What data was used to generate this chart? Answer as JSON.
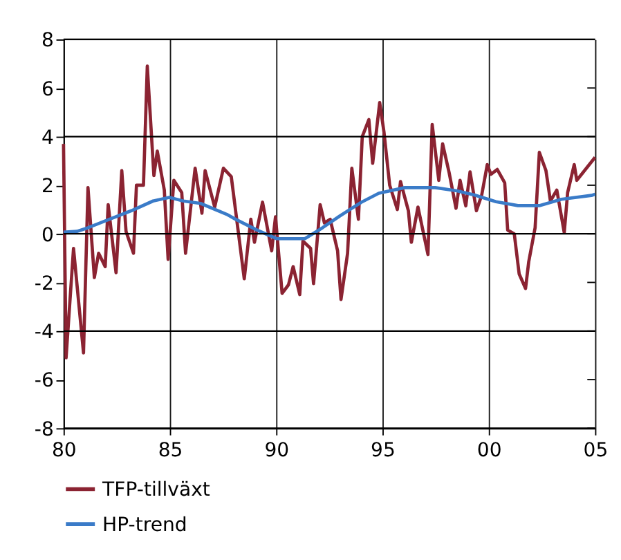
{
  "chart_data": {
    "type": "line",
    "xlim": [
      1980,
      2005
    ],
    "ylim": [
      -8,
      8
    ],
    "xticks": [
      {
        "value": 1980,
        "label": "80"
      },
      {
        "value": 1985,
        "label": "85"
      },
      {
        "value": 1990,
        "label": "90"
      },
      {
        "value": 1995,
        "label": "95"
      },
      {
        "value": 2000,
        "label": "00"
      },
      {
        "value": 2005,
        "label": "05"
      }
    ],
    "yticks": [
      -8,
      -6,
      -4,
      -2,
      0,
      2,
      4,
      6,
      8
    ],
    "grid": true,
    "legend": "bottom left",
    "line_style": "solid",
    "marker": "none",
    "series": [
      {
        "name": "TFP-tillväxt",
        "color": "#8b2332",
        "x": [
          1980.0,
          1980.12,
          1980.47,
          1980.94,
          1981.15,
          1981.45,
          1981.65,
          1981.96,
          1982.1,
          1982.47,
          1982.74,
          1982.94,
          1983.29,
          1983.43,
          1983.76,
          1983.94,
          1984.25,
          1984.41,
          1984.74,
          1984.92,
          1985.19,
          1985.56,
          1985.74,
          1986.19,
          1986.51,
          1986.66,
          1987.11,
          1987.52,
          1987.89,
          1988.5,
          1988.81,
          1988.98,
          1989.36,
          1989.79,
          1989.97,
          1990.28,
          1990.58,
          1990.8,
          1991.11,
          1991.26,
          1991.62,
          1991.76,
          1992.07,
          1992.27,
          1992.54,
          1992.89,
          1993.05,
          1993.36,
          1993.56,
          1993.87,
          1994.05,
          1994.36,
          1994.54,
          1994.87,
          1995.07,
          1995.34,
          1995.7,
          1995.85,
          1996.22,
          1996.36,
          1996.67,
          1997.14,
          1997.34,
          1997.65,
          1997.83,
          1998.14,
          1998.46,
          1998.65,
          1998.92,
          1999.12,
          1999.42,
          1999.67,
          1999.93,
          2000.1,
          2000.4,
          2000.75,
          2000.89,
          2001.2,
          2001.43,
          2001.73,
          2001.88,
          2002.18,
          2002.38,
          2002.69,
          2002.9,
          2003.2,
          2003.55,
          2003.71,
          2004.02,
          2004.14,
          2005.0
        ],
        "values": [
          3.7,
          -5.1,
          -0.6,
          -4.9,
          1.9,
          -1.8,
          -0.8,
          -1.35,
          1.2,
          -1.6,
          2.6,
          0.1,
          -0.8,
          2.0,
          2.0,
          6.9,
          2.4,
          3.4,
          1.8,
          -1.05,
          2.2,
          1.7,
          -0.8,
          2.7,
          0.85,
          2.6,
          1.1,
          2.7,
          2.35,
          -1.85,
          0.6,
          -0.35,
          1.3,
          -0.7,
          0.7,
          -2.45,
          -2.1,
          -1.35,
          -2.5,
          -0.3,
          -0.6,
          -2.05,
          1.2,
          0.45,
          0.6,
          -0.7,
          -2.7,
          -0.8,
          2.7,
          0.6,
          4.0,
          4.7,
          2.9,
          5.4,
          4.2,
          2.0,
          1.0,
          2.15,
          0.95,
          -0.35,
          1.1,
          -0.85,
          4.5,
          2.2,
          3.7,
          2.5,
          1.05,
          2.2,
          1.15,
          2.55,
          0.95,
          1.6,
          2.85,
          2.45,
          2.65,
          2.1,
          0.15,
          0.0,
          -1.65,
          -2.25,
          -1.15,
          0.25,
          3.35,
          2.6,
          1.35,
          1.8,
          0.05,
          1.7,
          2.85,
          2.2,
          3.15
        ]
      },
      {
        "name": "HP-trend",
        "color": "#3a7bc8",
        "x": [
          1980.0,
          1980.63,
          1981.15,
          1982.16,
          1983.19,
          1984.21,
          1984.98,
          1985.64,
          1986.45,
          1987.68,
          1988.09,
          1989.11,
          1990.03,
          1991.35,
          1992.18,
          1992.99,
          1994.01,
          1994.83,
          1996.05,
          1997.48,
          1998.5,
          1999.32,
          2000.34,
          2001.37,
          2002.38,
          2003.41,
          2004.83,
          2005.0
        ],
        "values": [
          0.07,
          0.1,
          0.25,
          0.6,
          0.95,
          1.35,
          1.5,
          1.35,
          1.25,
          0.8,
          0.6,
          0.15,
          -0.2,
          -0.2,
          0.25,
          0.73,
          1.3,
          1.67,
          1.9,
          1.9,
          1.77,
          1.6,
          1.32,
          1.16,
          1.16,
          1.42,
          1.58,
          1.63
        ]
      }
    ]
  }
}
